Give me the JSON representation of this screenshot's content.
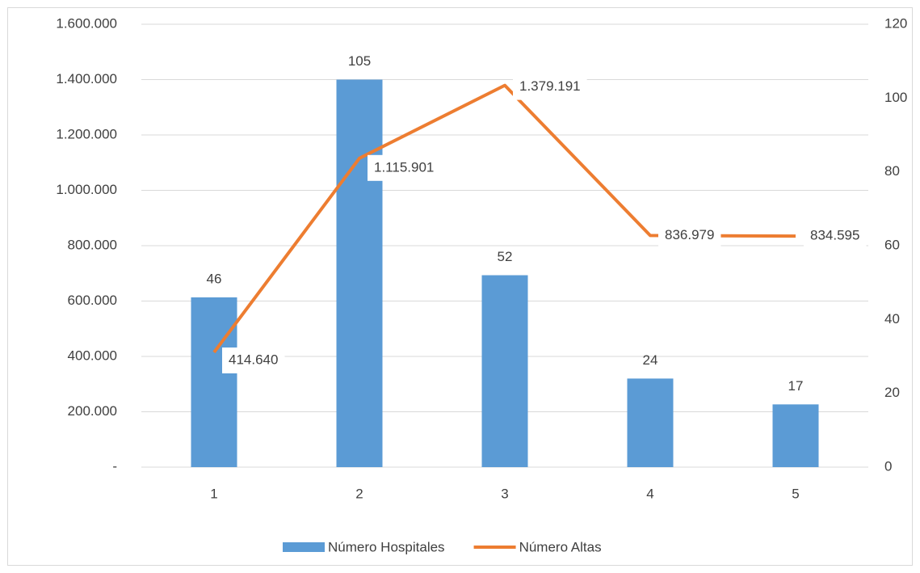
{
  "chart_data": {
    "type": "combo",
    "categories": [
      "1",
      "2",
      "3",
      "4",
      "5"
    ],
    "series": [
      {
        "name": "Número Hospitales",
        "type": "bar",
        "color": "#5b9bd5",
        "axis": "y2",
        "values": [
          46,
          105,
          52,
          24,
          17
        ]
      },
      {
        "name": "Número Altas",
        "type": "line",
        "color": "#ed7d31",
        "values": [
          414640,
          1115901,
          1379191,
          836979,
          834595
        ],
        "value_labels": [
          "414.640",
          "1.115.901",
          "1.379.191",
          "836.979",
          "834.595"
        ]
      }
    ],
    "ylim": [
      0,
      1600000
    ],
    "yticks": [
      {
        "value": 0,
        "label": "-"
      },
      {
        "value": 200000,
        "label": "200.000"
      },
      {
        "value": 400000,
        "label": "400.000"
      },
      {
        "value": 600000,
        "label": "600.000"
      },
      {
        "value": 800000,
        "label": "800.000"
      },
      {
        "value": 1000000,
        "label": "1.000.000"
      },
      {
        "value": 1200000,
        "label": "1.200.000"
      },
      {
        "value": 1400000,
        "label": "1.400.000"
      },
      {
        "value": 1600000,
        "label": "1.600.000"
      }
    ],
    "y2lim": [
      0,
      120
    ],
    "y2ticks": [
      0,
      20,
      40,
      60,
      80,
      100,
      120
    ],
    "grid": true,
    "legend": "bottom"
  }
}
